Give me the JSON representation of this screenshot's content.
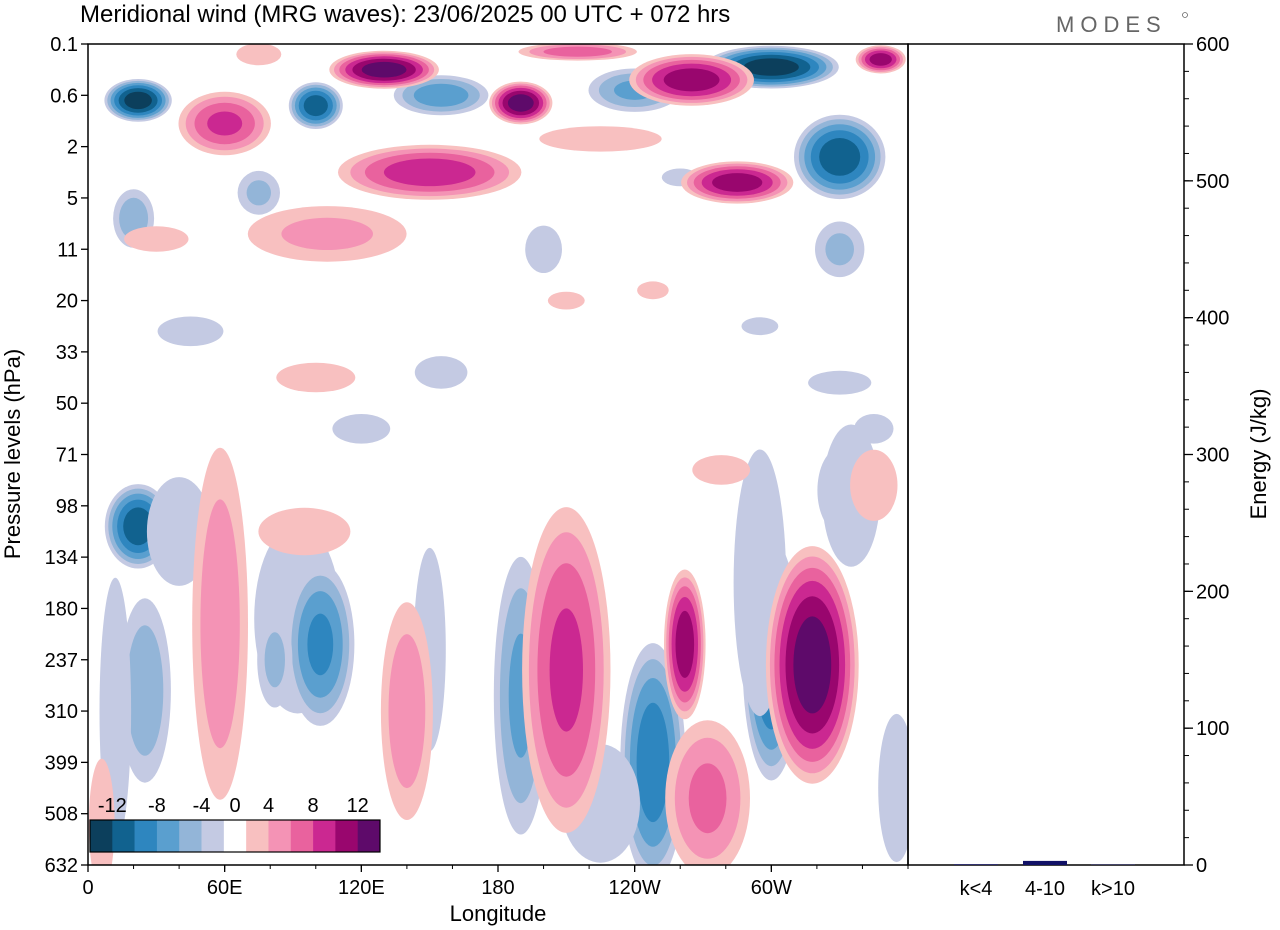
{
  "chart_data": [
    {
      "type": "heatmap",
      "title": "Meridional wind (MRG waves):  23/06/2025  00 UTC  + 072 hrs",
      "xlabel": "Longitude",
      "ylabel": "Pressure levels (hPa)",
      "x_ticks": [
        "0",
        "60E",
        "120E",
        "180",
        "120W",
        "60W"
      ],
      "x_tick_values": [
        0,
        60,
        120,
        180,
        240,
        300
      ],
      "xlim": [
        0,
        360
      ],
      "y_ticks": [
        "0.1",
        "0.6",
        "2",
        "5",
        "11",
        "20",
        "33",
        "50",
        "71",
        "98",
        "134",
        "180",
        "237",
        "310",
        "399",
        "508",
        "632"
      ],
      "colorbar": {
        "labels": [
          "-12",
          "-8",
          "-4",
          "0",
          "4",
          "8",
          "12"
        ],
        "bounds": [
          -14,
          -12,
          -10,
          -8,
          -6,
          -4,
          -2,
          2,
          4,
          6,
          8,
          10,
          12,
          14
        ],
        "colors": [
          "#0c3f5c",
          "#11628f",
          "#2e86bf",
          "#5a9fcf",
          "#93b5d8",
          "#c4cae3",
          "#ffffff",
          "#f8c0c0",
          "#f493b5",
          "#e9629e",
          "#cb2891",
          "#99066e",
          "#5e0a6a"
        ]
      },
      "blobs": [
        {
          "lon": 22,
          "lev": 1.1,
          "rx": 16,
          "ry": 0.45,
          "v": -14
        },
        {
          "lon": 100,
          "lev": 1.2,
          "rx": 13,
          "ry": 0.5,
          "v": -12
        },
        {
          "lon": 75,
          "lev": 2.9,
          "rx": 12,
          "ry": 0.55,
          "v": -5
        },
        {
          "lon": 20,
          "lev": 3.4,
          "rx": 11,
          "ry": 0.7,
          "v": -6
        },
        {
          "lon": 155,
          "lev": 1.0,
          "rx": 24,
          "ry": 0.45,
          "v": -8
        },
        {
          "lon": 145,
          "lev": 2.3,
          "rx": 16,
          "ry": 0.4,
          "v": -6
        },
        {
          "lon": 240,
          "lev": 0.9,
          "rx": 24,
          "ry": 0.5,
          "v": -7
        },
        {
          "lon": 300,
          "lev": 0.45,
          "rx": 32,
          "ry": 0.45,
          "v": -14
        },
        {
          "lon": 330,
          "lev": 2.2,
          "rx": 22,
          "ry": 0.9,
          "v": -12
        },
        {
          "lon": 330,
          "lev": 4.0,
          "rx": 14,
          "ry": 0.7,
          "v": -5
        },
        {
          "lon": 260,
          "lev": 2.6,
          "rx": 14,
          "ry": 0.3,
          "v": -3
        },
        {
          "lon": 200,
          "lev": 4.0,
          "rx": 14,
          "ry": 0.8,
          "v": -3
        },
        {
          "lon": 155,
          "lev": 6.4,
          "rx": 20,
          "ry": 0.55,
          "v": -3
        },
        {
          "lon": 45,
          "lev": 5.6,
          "rx": 25,
          "ry": 0.5,
          "v": -3
        },
        {
          "lon": 120,
          "lev": 7.5,
          "rx": 22,
          "ry": 0.5,
          "v": -3
        },
        {
          "lon": 330,
          "lev": 6.6,
          "rx": 24,
          "ry": 0.4,
          "v": -3
        },
        {
          "lon": 345,
          "lev": 7.5,
          "rx": 15,
          "ry": 0.5,
          "v": -3
        },
        {
          "lon": 295,
          "lev": 5.5,
          "rx": 14,
          "ry": 0.3,
          "v": -3
        },
        {
          "lon": 75,
          "lev": 0.2,
          "rx": 14,
          "ry": 0.3,
          "v": 4
        },
        {
          "lon": 130,
          "lev": 0.5,
          "rx": 26,
          "ry": 0.4,
          "v": 14
        },
        {
          "lon": 190,
          "lev": 1.15,
          "rx": 15,
          "ry": 0.45,
          "v": 14
        },
        {
          "lon": 215,
          "lev": 0.15,
          "rx": 30,
          "ry": 0.2,
          "v": 8
        },
        {
          "lon": 265,
          "lev": 0.7,
          "rx": 30,
          "ry": 0.55,
          "v": 12
        },
        {
          "lon": 348,
          "lev": 0.3,
          "rx": 12,
          "ry": 0.3,
          "v": 12
        },
        {
          "lon": 60,
          "lev": 1.55,
          "rx": 23,
          "ry": 0.7,
          "v": 9
        },
        {
          "lon": 150,
          "lev": 2.5,
          "rx": 45,
          "ry": 0.6,
          "v": 10
        },
        {
          "lon": 285,
          "lev": 2.7,
          "rx": 27,
          "ry": 0.45,
          "v": 12
        },
        {
          "lon": 225,
          "lev": 1.85,
          "rx": 38,
          "ry": 0.35,
          "v": 4
        },
        {
          "lon": 105,
          "lev": 3.7,
          "rx": 45,
          "ry": 0.7,
          "v": 5
        },
        {
          "lon": 30,
          "lev": 3.8,
          "rx": 20,
          "ry": 0.35,
          "v": 4
        },
        {
          "lon": 210,
          "lev": 5.0,
          "rx": 14,
          "ry": 0.3,
          "v": 3
        },
        {
          "lon": 248,
          "lev": 4.8,
          "rx": 12,
          "ry": 0.3,
          "v": 3
        },
        {
          "lon": 100,
          "lev": 6.5,
          "rx": 30,
          "ry": 0.5,
          "v": 3
        },
        {
          "lon": 22,
          "lev": 9.4,
          "rx": 16,
          "ry": 0.9,
          "v": -12
        },
        {
          "lon": 40,
          "lev": 9.5,
          "rx": 20,
          "ry": 1.5,
          "v": -4
        },
        {
          "lon": 25,
          "lev": 12.6,
          "rx": 14,
          "ry": 2.2,
          "v": -6
        },
        {
          "lon": 12,
          "lev": 13.0,
          "rx": 12,
          "ry": 4.5,
          "v": -3
        },
        {
          "lon": 92,
          "lev": 11.2,
          "rx": 33,
          "ry": 3.2,
          "v": -3
        },
        {
          "lon": 102,
          "lev": 11.7,
          "rx": 17,
          "ry": 1.8,
          "v": -9
        },
        {
          "lon": 82,
          "lev": 12.0,
          "rx": 10,
          "ry": 1.2,
          "v": -5
        },
        {
          "lon": 150,
          "lev": 11.8,
          "rx": 10,
          "ry": 2.8,
          "v": -4
        },
        {
          "lon": 190,
          "lev": 12.7,
          "rx": 14,
          "ry": 3.2,
          "v": -7
        },
        {
          "lon": 248,
          "lev": 14.0,
          "rx": 16,
          "ry": 2.6,
          "v": -10
        },
        {
          "lon": 300,
          "lev": 12.0,
          "rx": 14,
          "ry": 2.6,
          "v": -11
        },
        {
          "lon": 295,
          "lev": 10.5,
          "rx": 20,
          "ry": 4.5,
          "v": -3
        },
        {
          "lon": 330,
          "lev": 8.7,
          "rx": 12,
          "ry": 1.0,
          "v": -6
        },
        {
          "lon": 335,
          "lev": 8.8,
          "rx": 22,
          "ry": 2.4,
          "v": -3
        },
        {
          "lon": 355,
          "lev": 14.5,
          "rx": 14,
          "ry": 2.5,
          "v": -3
        },
        {
          "lon": 225,
          "lev": 14.8,
          "rx": 30,
          "ry": 2.0,
          "v": -3
        },
        {
          "lon": 58,
          "lev": 11.3,
          "rx": 15,
          "ry": 4.2,
          "v": 6
        },
        {
          "lon": 140,
          "lev": 13.0,
          "rx": 14,
          "ry": 2.6,
          "v": 6
        },
        {
          "lon": 210,
          "lev": 12.2,
          "rx": 22,
          "ry": 3.6,
          "v": 9
        },
        {
          "lon": 262,
          "lev": 11.7,
          "rx": 10,
          "ry": 1.6,
          "v": 12
        },
        {
          "lon": 318,
          "lev": 12.1,
          "rx": 22,
          "ry": 2.5,
          "v": 14
        },
        {
          "lon": 272,
          "lev": 14.7,
          "rx": 22,
          "ry": 1.8,
          "v": 7
        },
        {
          "lon": 345,
          "lev": 8.6,
          "rx": 18,
          "ry": 1.2,
          "v": 3
        },
        {
          "lon": 278,
          "lev": 8.3,
          "rx": 22,
          "ry": 0.5,
          "v": 3
        },
        {
          "lon": 95,
          "lev": 9.5,
          "rx": 35,
          "ry": 0.8,
          "v": 3
        },
        {
          "lon": 6,
          "lev": 15.2,
          "rx": 8,
          "ry": 1.8,
          "v": 4
        }
      ]
    },
    {
      "type": "bar",
      "ylabel": "Energy (J/kg)",
      "categories": [
        "k<4",
        "4-10",
        "k>10"
      ],
      "values": [
        0.5,
        3,
        0.3
      ],
      "ylim": [
        0,
        600
      ],
      "y_ticks": [
        "0",
        "100",
        "200",
        "300",
        "400",
        "500",
        "600"
      ],
      "bar_color": "#111166"
    }
  ],
  "logo": "MODES"
}
